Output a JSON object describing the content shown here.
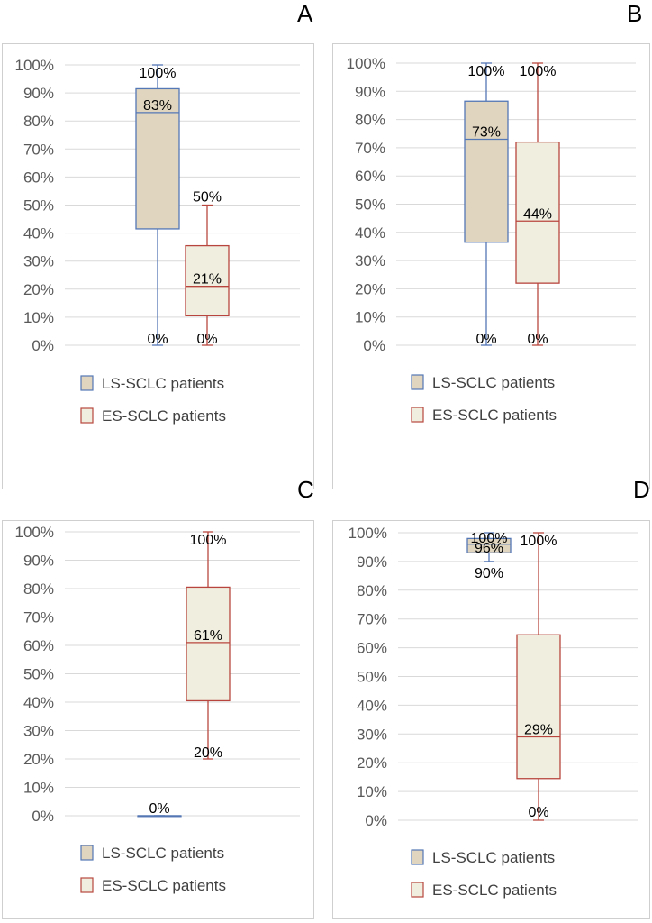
{
  "colors": {
    "ls_stroke": "#5477b5",
    "ls_fill": "#e0d5bf",
    "es_stroke": "#b8463e",
    "es_fill": "#efeedf",
    "grid": "#d9d9d9",
    "frame": "#cfcfcf"
  },
  "chart_data": [
    {
      "type": "boxplot",
      "panel": "A",
      "ylim": [
        0,
        100
      ],
      "y_ticks": [
        "0%",
        "10%",
        "20%",
        "30%",
        "40%",
        "50%",
        "60%",
        "70%",
        "80%",
        "90%",
        "100%"
      ],
      "legend": [
        "LS-SCLC patients",
        "ES-SCLC patients"
      ],
      "series": [
        {
          "name": "LS-SCLC patients",
          "min": 0,
          "q1": 41.5,
          "median": 83,
          "q3": 91.5,
          "max": 100,
          "labels": [
            {
              "text": "100%",
              "y": 100
            },
            {
              "text": "83%",
              "y": 83
            },
            {
              "text": "0%",
              "y": 0
            }
          ]
        },
        {
          "name": "ES-SCLC patients",
          "min": 0,
          "q1": 10.5,
          "median": 21,
          "q3": 35.5,
          "max": 50,
          "labels": [
            {
              "text": "50%",
              "y": 50
            },
            {
              "text": "21%",
              "y": 21
            },
            {
              "text": "0%",
              "y": 0
            }
          ]
        }
      ]
    },
    {
      "type": "boxplot",
      "panel": "B",
      "ylim": [
        0,
        100
      ],
      "y_ticks": [
        "0%",
        "10%",
        "20%",
        "30%",
        "40%",
        "50%",
        "60%",
        "70%",
        "80%",
        "90%",
        "100%"
      ],
      "legend": [
        "LS-SCLC patients",
        "ES-SCLC patients"
      ],
      "series": [
        {
          "name": "LS-SCLC patients",
          "min": 0,
          "q1": 36.5,
          "median": 73,
          "q3": 86.5,
          "max": 100,
          "labels": [
            {
              "text": "100%",
              "y": 100
            },
            {
              "text": "73%",
              "y": 73
            },
            {
              "text": "0%",
              "y": 0
            }
          ]
        },
        {
          "name": "ES-SCLC patients",
          "min": 0,
          "q1": 22,
          "median": 44,
          "q3": 72,
          "max": 100,
          "labels": [
            {
              "text": "100%",
              "y": 100
            },
            {
              "text": "44%",
              "y": 44
            },
            {
              "text": "0%",
              "y": 0
            }
          ]
        }
      ]
    },
    {
      "type": "boxplot",
      "panel": "C",
      "ylim": [
        0,
        100
      ],
      "y_ticks": [
        "0%",
        "10%",
        "20%",
        "30%",
        "40%",
        "50%",
        "60%",
        "70%",
        "80%",
        "90%",
        "100%"
      ],
      "legend": [
        "LS-SCLC patients",
        "ES-SCLC patients"
      ],
      "series": [
        {
          "name": "LS-SCLC patients",
          "min": 0,
          "q1": 0,
          "median": 0,
          "q3": 0,
          "max": 0,
          "labels": [
            {
              "text": "0%",
              "y": 0
            }
          ]
        },
        {
          "name": "ES-SCLC patients",
          "min": 20,
          "q1": 40.5,
          "median": 61,
          "q3": 80.5,
          "max": 100,
          "labels": [
            {
              "text": "100%",
              "y": 100
            },
            {
              "text": "61%",
              "y": 61
            },
            {
              "text": "20%",
              "y": 20
            }
          ]
        }
      ]
    },
    {
      "type": "boxplot",
      "panel": "D",
      "ylim": [
        0,
        100
      ],
      "y_ticks": [
        "0%",
        "10%",
        "20%",
        "30%",
        "40%",
        "50%",
        "60%",
        "70%",
        "80%",
        "90%",
        "100%"
      ],
      "legend": [
        "LS-SCLC patients",
        "ES-SCLC patients"
      ],
      "series": [
        {
          "name": "LS-SCLC patients",
          "min": 90,
          "q1": 93,
          "median": 96,
          "q3": 98,
          "max": 100,
          "labels": [
            {
              "text": "100%",
              "y": 100
            },
            {
              "text": "96%",
              "y": 96
            },
            {
              "text": "90%",
              "y": 90
            }
          ]
        },
        {
          "name": "ES-SCLC patients",
          "min": 0,
          "q1": 14.5,
          "median": 29,
          "q3": 64.5,
          "max": 100,
          "labels": [
            {
              "text": "100%",
              "y": 100
            },
            {
              "text": "29%",
              "y": 29
            },
            {
              "text": "0%",
              "y": 0
            }
          ]
        }
      ]
    }
  ]
}
